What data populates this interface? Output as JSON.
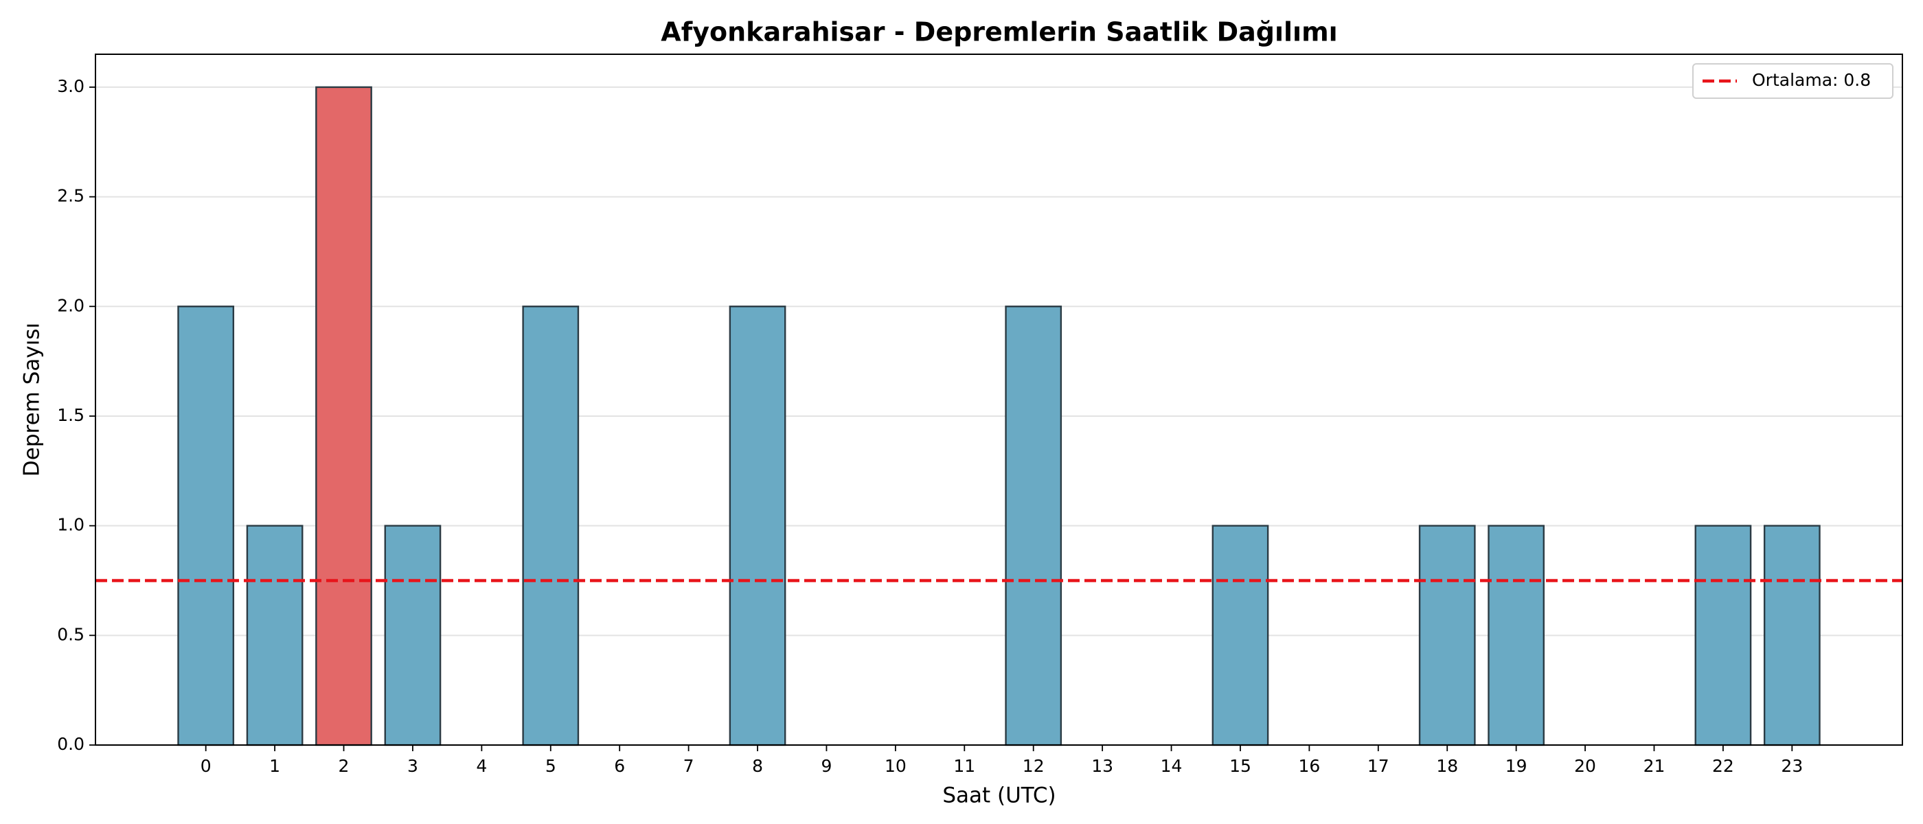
{
  "chart_data": {
    "type": "bar",
    "title": "Afyonkarahisar - Depremlerin Saatlik Dağılımı",
    "x_label": "Saat (UTC)",
    "y_label": "Deprem Sayısı",
    "categories": [
      "0",
      "1",
      "2",
      "3",
      "4",
      "5",
      "6",
      "7",
      "8",
      "9",
      "10",
      "11",
      "12",
      "13",
      "14",
      "15",
      "16",
      "17",
      "18",
      "19",
      "20",
      "21",
      "22",
      "23"
    ],
    "values": [
      2,
      1,
      3,
      1,
      0,
      2,
      0,
      0,
      2,
      0,
      0,
      0,
      2,
      0,
      0,
      1,
      0,
      0,
      1,
      1,
      0,
      0,
      1,
      1
    ],
    "colors": [
      "#6aaac4",
      "#6aaac4",
      "#e36868",
      "#6aaac4",
      "#6aaac4",
      "#6aaac4",
      "#6aaac4",
      "#6aaac4",
      "#6aaac4",
      "#6aaac4",
      "#6aaac4",
      "#6aaac4",
      "#6aaac4",
      "#6aaac4",
      "#6aaac4",
      "#6aaac4",
      "#6aaac4",
      "#6aaac4",
      "#6aaac4",
      "#6aaac4",
      "#6aaac4",
      "#6aaac4",
      "#6aaac4",
      "#6aaac4"
    ],
    "edge_color": "#2b3b44",
    "ylim": [
      0,
      3.15
    ],
    "yticks": [
      {
        "value": 0,
        "label": "0.0"
      },
      0.5,
      {
        "value": 1,
        "label": "1.0"
      },
      1.5,
      {
        "value": 2,
        "label": "2.0"
      },
      2.5,
      {
        "value": 3,
        "label": "3.0"
      }
    ],
    "grid": true,
    "mean_line": {
      "value": 0.75,
      "label": "Ortalama: 0.8",
      "color": "#e8141a"
    },
    "legend": "upper right"
  }
}
